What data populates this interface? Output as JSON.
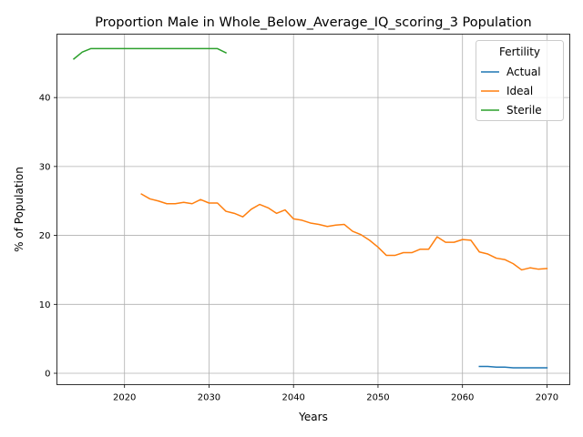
{
  "chart_data": {
    "type": "line",
    "title": "Proportion Male in Whole_Below_Average_IQ_scoring_3 Population",
    "xlabel": "Years",
    "ylabel": "% of Population",
    "xlim": [
      2012,
      2072.7
    ],
    "ylim": [
      -1.65,
      49.2
    ],
    "x_ticks": [
      2020,
      2030,
      2040,
      2050,
      2060,
      2070
    ],
    "y_ticks": [
      0,
      10,
      20,
      30,
      40
    ],
    "grid": true,
    "legend": {
      "title": "Fertility",
      "placement": "top-right",
      "entries": [
        "Actual",
        "Ideal",
        "Sterile"
      ]
    },
    "series": [
      {
        "name": "Actual",
        "color": "#1f77b4",
        "points": [
          [
            2062,
            1.0
          ],
          [
            2063,
            1.0
          ],
          [
            2064,
            0.9
          ],
          [
            2065,
            0.9
          ],
          [
            2066,
            0.8
          ],
          [
            2067,
            0.8
          ],
          [
            2068,
            0.8
          ],
          [
            2069,
            0.8
          ],
          [
            2070,
            0.8
          ]
        ]
      },
      {
        "name": "Ideal",
        "color": "#ff7f0e",
        "points": [
          [
            2022,
            26.0
          ],
          [
            2023,
            25.3
          ],
          [
            2024,
            25.0
          ],
          [
            2025,
            24.6
          ],
          [
            2026,
            24.6
          ],
          [
            2027,
            24.8
          ],
          [
            2028,
            24.6
          ],
          [
            2029,
            25.2
          ],
          [
            2030,
            24.7
          ],
          [
            2031,
            24.7
          ],
          [
            2032,
            23.5
          ],
          [
            2033,
            23.2
          ],
          [
            2034,
            22.7
          ],
          [
            2035,
            23.8
          ],
          [
            2036,
            24.5
          ],
          [
            2037,
            24.0
          ],
          [
            2038,
            23.2
          ],
          [
            2039,
            23.7
          ],
          [
            2040,
            22.4
          ],
          [
            2041,
            22.2
          ],
          [
            2042,
            21.8
          ],
          [
            2043,
            21.6
          ],
          [
            2044,
            21.3
          ],
          [
            2045,
            21.5
          ],
          [
            2046,
            21.6
          ],
          [
            2047,
            20.6
          ],
          [
            2048,
            20.1
          ],
          [
            2049,
            19.3
          ],
          [
            2050,
            18.3
          ],
          [
            2051,
            17.1
          ],
          [
            2052,
            17.1
          ],
          [
            2053,
            17.5
          ],
          [
            2054,
            17.5
          ],
          [
            2055,
            18.0
          ],
          [
            2056,
            18.0
          ],
          [
            2057,
            19.8
          ],
          [
            2058,
            19.0
          ],
          [
            2059,
            19.0
          ],
          [
            2060,
            19.4
          ],
          [
            2061,
            19.3
          ],
          [
            2062,
            17.6
          ],
          [
            2063,
            17.3
          ],
          [
            2064,
            16.7
          ],
          [
            2065,
            16.5
          ],
          [
            2066,
            15.9
          ],
          [
            2067,
            15.0
          ],
          [
            2068,
            15.3
          ],
          [
            2069,
            15.1
          ],
          [
            2070,
            15.2
          ]
        ]
      },
      {
        "name": "Sterile",
        "color": "#2ca02c",
        "points": [
          [
            2014,
            45.6
          ],
          [
            2015,
            46.6
          ],
          [
            2016,
            47.1
          ],
          [
            2017,
            47.1
          ],
          [
            2018,
            47.1
          ],
          [
            2019,
            47.1
          ],
          [
            2020,
            47.1
          ],
          [
            2021,
            47.1
          ],
          [
            2022,
            47.1
          ],
          [
            2023,
            47.1
          ],
          [
            2024,
            47.1
          ],
          [
            2025,
            47.1
          ],
          [
            2026,
            47.1
          ],
          [
            2027,
            47.1
          ],
          [
            2028,
            47.1
          ],
          [
            2029,
            47.1
          ],
          [
            2030,
            47.1
          ],
          [
            2031,
            47.1
          ],
          [
            2032,
            46.5
          ]
        ]
      }
    ]
  }
}
